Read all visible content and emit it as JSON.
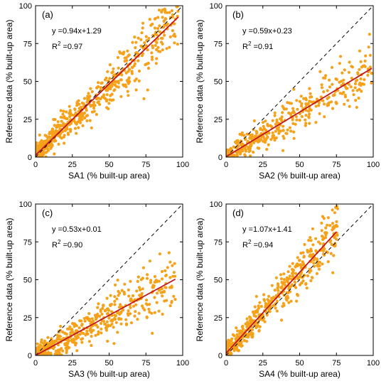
{
  "chart_data": [
    {
      "type": "scatter",
      "panel_label": "(a)",
      "xlabel": "SA1 (% built-up area)",
      "ylabel": "Reference data (% built-up area)",
      "xlim": [
        0,
        100
      ],
      "ylim": [
        0,
        100
      ],
      "xticks": [
        0,
        25,
        50,
        75,
        100
      ],
      "yticks": [
        0,
        25,
        50,
        75,
        100
      ],
      "equation": "y =0.94x+1.29",
      "r2_label": "R",
      "r2_sup": "2",
      "r2_value": " =0.97",
      "fit": {
        "slope": 0.94,
        "intercept": 1.29,
        "x_range": [
          0,
          97
        ]
      },
      "one_to_one": true,
      "point_range": [
        0,
        97
      ],
      "point_spread": 5,
      "point_count": 620,
      "colors": {
        "points": "#f5a11a",
        "fit": "#c0161e",
        "identity": "#000000"
      }
    },
    {
      "type": "scatter",
      "panel_label": "(b)",
      "xlabel": "SA2 (% built-up area)",
      "ylabel": "Reference data (% built-up area)",
      "xlim": [
        0,
        100
      ],
      "ylim": [
        0,
        100
      ],
      "xticks": [
        0,
        25,
        50,
        75,
        100
      ],
      "yticks": [
        0,
        25,
        50,
        75,
        100
      ],
      "equation": "y =0.59x+0.23",
      "r2_label": "R",
      "r2_sup": "2",
      "r2_value": " =0.91",
      "fit": {
        "slope": 0.59,
        "intercept": 0.23,
        "x_range": [
          0,
          99
        ]
      },
      "one_to_one": true,
      "point_range": [
        0,
        100
      ],
      "point_spread": 5,
      "point_count": 420,
      "colors": {
        "points": "#f5a11a",
        "fit": "#c0161e",
        "identity": "#000000"
      }
    },
    {
      "type": "scatter",
      "panel_label": "(c)",
      "xlabel": "SA3 (% built-up area)",
      "ylabel": "Reference data (% built-up area)",
      "xlim": [
        0,
        100
      ],
      "ylim": [
        0,
        100
      ],
      "xticks": [
        0,
        25,
        50,
        75,
        100
      ],
      "yticks": [
        0,
        25,
        50,
        75,
        100
      ],
      "equation": "y =0.53x+0.01",
      "r2_label": "R",
      "r2_sup": "2",
      "r2_value": " =0.90",
      "fit": {
        "slope": 0.53,
        "intercept": 0.01,
        "x_range": [
          0,
          95
        ]
      },
      "one_to_one": true,
      "point_range": [
        0,
        95
      ],
      "point_spread": 5,
      "point_count": 520,
      "colors": {
        "points": "#f5a11a",
        "fit": "#c0161e",
        "identity": "#000000"
      }
    },
    {
      "type": "scatter",
      "panel_label": "(d)",
      "xlabel": "SA4 (% built-up area)",
      "ylabel": "Reference data (% built-up area)",
      "xlim": [
        0,
        100
      ],
      "ylim": [
        0,
        100
      ],
      "xticks": [
        0,
        25,
        50,
        75,
        100
      ],
      "yticks": [
        0,
        25,
        50,
        75,
        100
      ],
      "equation": "y =1.07x+1.41",
      "r2_label": "R",
      "r2_sup": "2",
      "r2_value": " =0.94",
      "fit": {
        "slope": 1.07,
        "intercept": 1.41,
        "x_range": [
          0,
          75
        ]
      },
      "one_to_one": true,
      "point_range": [
        0,
        76
      ],
      "point_spread": 5,
      "point_count": 520,
      "colors": {
        "points": "#f5a11a",
        "fit": "#c0161e",
        "identity": "#000000"
      }
    }
  ]
}
